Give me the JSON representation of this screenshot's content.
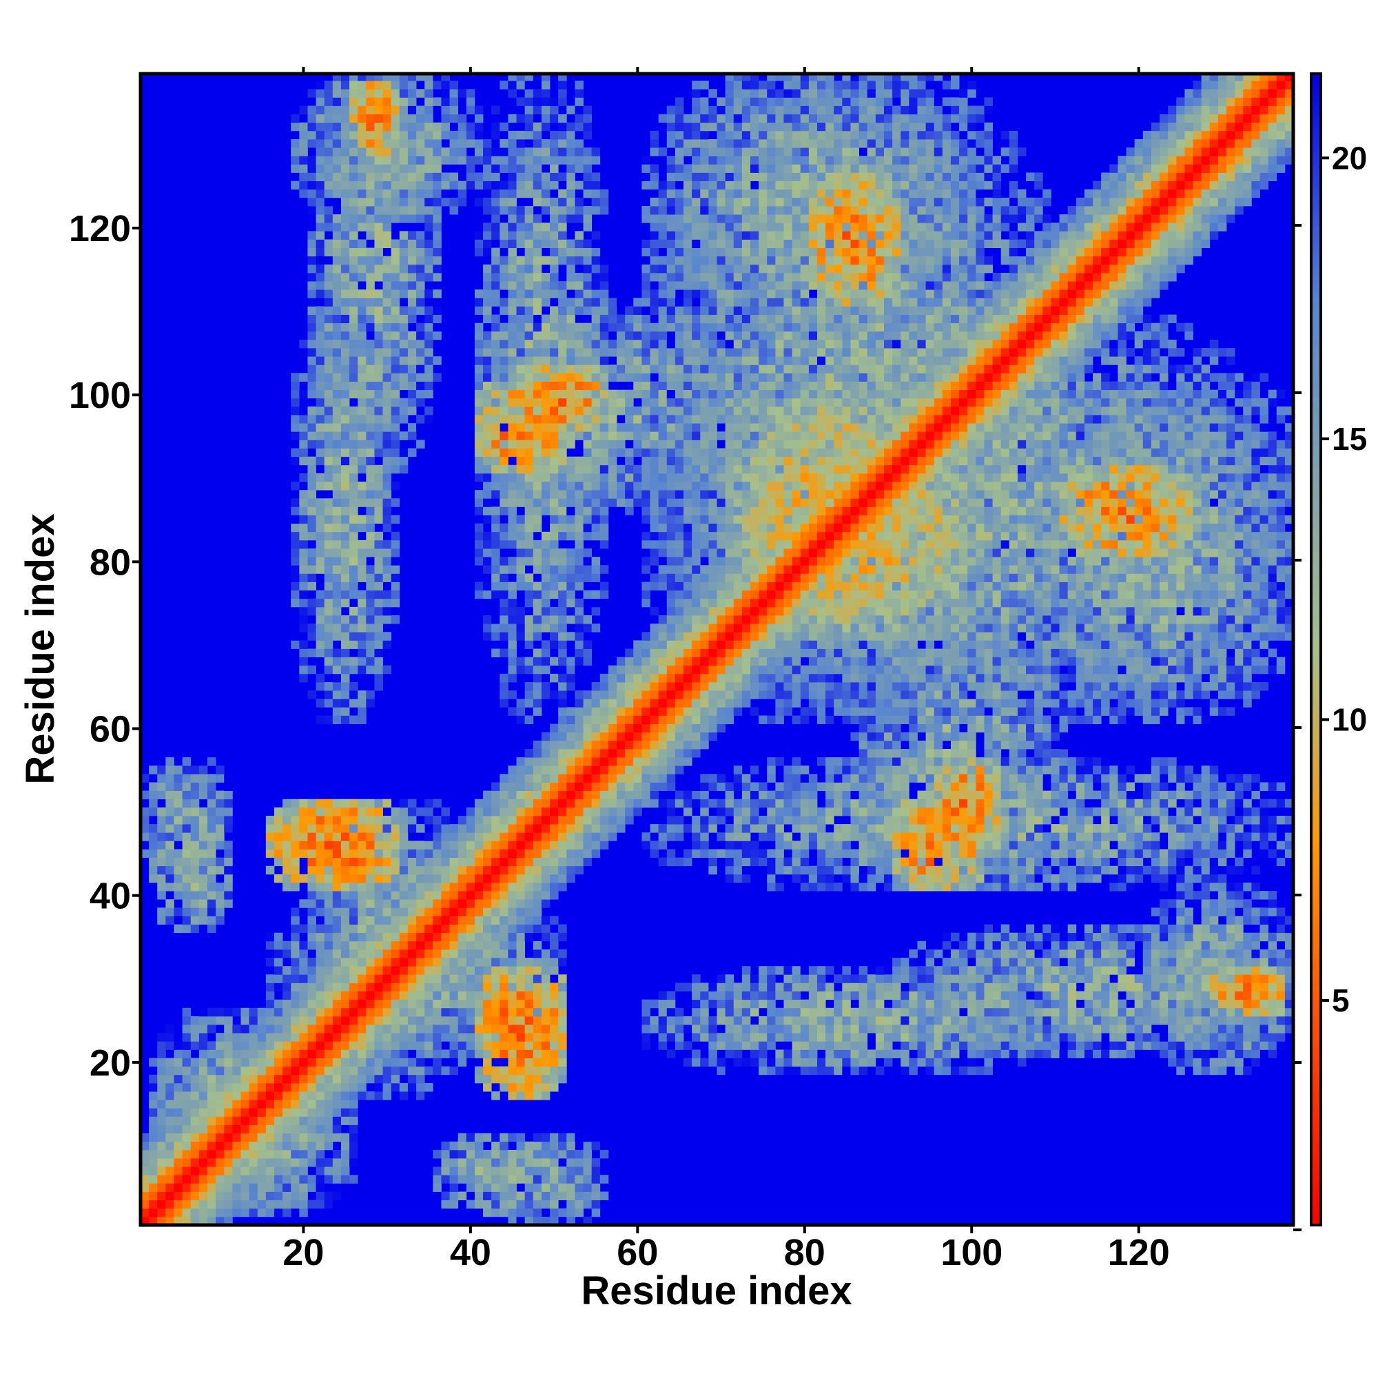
{
  "chart_data": {
    "type": "heatmap",
    "title": "",
    "xlabel": "Residue index",
    "ylabel": "Residue index",
    "xlim": [
      1,
      138
    ],
    "ylim": [
      1,
      138
    ],
    "n_residues": 138,
    "x_ticks": [
      20,
      40,
      60,
      80,
      100,
      120
    ],
    "y_ticks": [
      20,
      40,
      60,
      80,
      100,
      120
    ],
    "colorbar": {
      "min": 1,
      "max": 21.5,
      "ticks": [
        5,
        10,
        15,
        20
      ],
      "colors": [
        "#ff0000",
        "#ff9900",
        "#a6bf8c",
        "#5a86cf",
        "#0000ee"
      ],
      "stops": [
        0,
        0.33,
        0.5,
        0.8,
        1
      ]
    },
    "matrix_description": "pairwise residue-residue distance map (symmetric); values near 1-5 along the diagonal, background values above 20",
    "contact_regions": [
      {
        "x": [
          20,
          40
        ],
        "y": [
          15,
          50
        ],
        "level": "mid"
      },
      {
        "x": [
          40,
          50
        ],
        "y": [
          15,
          28
        ],
        "level": "low"
      },
      {
        "x": [
          20,
          30
        ],
        "y": [
          40,
          50
        ],
        "level": "low"
      },
      {
        "x": [
          40,
          70
        ],
        "y": [
          85,
          110
        ],
        "level": "mid"
      },
      {
        "x": [
          45,
          55
        ],
        "y": [
          95,
          102
        ],
        "level": "low"
      },
      {
        "x": [
          60,
          110
        ],
        "y": [
          60,
          138
        ],
        "level": "mid"
      },
      {
        "x": [
          70,
          95
        ],
        "y": [
          70,
          100
        ],
        "level": "low-mid"
      },
      {
        "x": [
          60,
          138
        ],
        "y": [
          40,
          55
        ],
        "level": "mid"
      },
      {
        "x": [
          90,
          100
        ],
        "y": [
          40,
          50
        ],
        "level": "low"
      },
      {
        "x": [
          60,
          110
        ],
        "y": [
          18,
          30
        ],
        "level": "mid"
      },
      {
        "x": [
          105,
          138
        ],
        "y": [
          60,
          100
        ],
        "level": "mid"
      },
      {
        "x": [
          110,
          125
        ],
        "y": [
          80,
          90
        ],
        "level": "low"
      },
      {
        "x": [
          120,
          138
        ],
        "y": [
          18,
          40
        ],
        "level": "mid"
      },
      {
        "x": [
          128,
          135
        ],
        "y": [
          26,
          30
        ],
        "level": "low"
      },
      {
        "x": [
          20,
          35
        ],
        "y": [
          90,
          138
        ],
        "level": "mid"
      },
      {
        "x": [
          25,
          30
        ],
        "y": [
          130,
          136
        ],
        "level": "low"
      },
      {
        "x": [
          40,
          55
        ],
        "y": [
          0,
          10
        ],
        "level": "mid"
      },
      {
        "x": [
          1,
          10
        ],
        "y": [
          35,
          48
        ],
        "level": "mid"
      },
      {
        "x": [
          1,
          18
        ],
        "y": [
          1,
          25
        ],
        "level": "mid"
      }
    ]
  }
}
